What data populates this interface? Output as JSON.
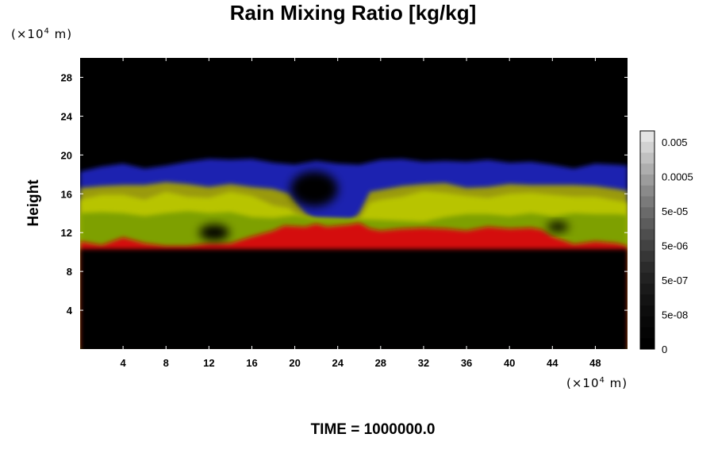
{
  "chart_data": {
    "type": "heatmap",
    "title": "Rain Mixing Ratio [kg/kg]",
    "ylabel": "Height",
    "x_unit": {
      "prefix": "(×10",
      "exp": "4",
      "suffix": " m)"
    },
    "y_unit": {
      "prefix": "(×10",
      "exp": "4",
      "suffix": " m)"
    },
    "xlim": [
      0,
      51
    ],
    "ylim": [
      0,
      30
    ],
    "xticks": [
      4,
      8,
      12,
      16,
      20,
      24,
      28,
      32,
      36,
      40,
      44,
      48
    ],
    "yticks": [
      4,
      8,
      12,
      16,
      20,
      24,
      28
    ],
    "background_color": "#000000",
    "colorbar": {
      "labels": [
        "0.005",
        "0.0005",
        "5e-05",
        "5e-06",
        "5e-07",
        "5e-08",
        "0"
      ],
      "colors": [
        "#e4e4e4",
        "#d2d2d2",
        "#c0c0c0",
        "#aeaeae",
        "#9c9c9c",
        "#8a8a8a",
        "#7a7a7a",
        "#6a6a6a",
        "#5c5c5c",
        "#4e4e4e",
        "#424242",
        "#363636",
        "#2b2b2b",
        "#222222",
        "#1a1a1a",
        "#131313",
        "#0d0d0d",
        "#080808",
        "#040404",
        "#000000"
      ]
    },
    "series": [
      {
        "color": "#1a22b0",
        "points": [
          [
            0,
            18.3
          ],
          [
            2,
            18.8
          ],
          [
            4,
            19.1
          ],
          [
            6,
            18.6
          ],
          [
            8,
            18.9
          ],
          [
            10,
            19.3
          ],
          [
            12,
            19.6
          ],
          [
            14,
            19.5
          ],
          [
            16,
            19.6
          ],
          [
            18,
            19.2
          ],
          [
            20,
            19.0
          ],
          [
            22,
            19.4
          ],
          [
            24,
            19.1
          ],
          [
            26,
            19.0
          ],
          [
            28,
            19.5
          ],
          [
            30,
            19.6
          ],
          [
            32,
            19.3
          ],
          [
            34,
            19.4
          ],
          [
            36,
            19.3
          ],
          [
            38,
            19.5
          ],
          [
            40,
            19.2
          ],
          [
            42,
            19.3
          ],
          [
            44,
            19.0
          ],
          [
            46,
            18.6
          ],
          [
            48,
            19.1
          ],
          [
            50,
            19.0
          ],
          [
            51,
            18.9
          ]
        ]
      },
      {
        "color": "#9a9a10",
        "points": [
          [
            0,
            16.6
          ],
          [
            2,
            16.8
          ],
          [
            4,
            16.9
          ],
          [
            6,
            16.9
          ],
          [
            8,
            17.2
          ],
          [
            10,
            17.0
          ],
          [
            12,
            16.7
          ],
          [
            14,
            17.0
          ],
          [
            16,
            16.7
          ],
          [
            18,
            16.5
          ],
          [
            19.5,
            16.0
          ],
          [
            20.5,
            14.6
          ],
          [
            21,
            14.0
          ],
          [
            22,
            13.2
          ],
          [
            25,
            13.0
          ],
          [
            26,
            14.0
          ],
          [
            27,
            16.2
          ],
          [
            28,
            16.4
          ],
          [
            30,
            16.8
          ],
          [
            32,
            17.0
          ],
          [
            34,
            17.1
          ],
          [
            36,
            16.6
          ],
          [
            38,
            16.7
          ],
          [
            40,
            17.0
          ],
          [
            42,
            16.9
          ],
          [
            44,
            16.9
          ],
          [
            46,
            16.9
          ],
          [
            48,
            16.8
          ],
          [
            50,
            16.5
          ],
          [
            51,
            16.3
          ]
        ]
      },
      {
        "color": "#b8c400",
        "points": [
          [
            0,
            15.4
          ],
          [
            2,
            15.9
          ],
          [
            4,
            15.9
          ],
          [
            6,
            15.4
          ],
          [
            8,
            16.2
          ],
          [
            10,
            15.7
          ],
          [
            12,
            15.6
          ],
          [
            14,
            16.2
          ],
          [
            16,
            15.8
          ],
          [
            18,
            14.8
          ],
          [
            19.5,
            14.5
          ],
          [
            20,
            14.0
          ],
          [
            21,
            13.5
          ],
          [
            26,
            13.3
          ],
          [
            27,
            15.1
          ],
          [
            28,
            15.4
          ],
          [
            30,
            15.7
          ],
          [
            32,
            16.3
          ],
          [
            34,
            16.1
          ],
          [
            36,
            15.8
          ],
          [
            38,
            15.6
          ],
          [
            40,
            16.0
          ],
          [
            42,
            16.1
          ],
          [
            44,
            15.9
          ],
          [
            46,
            15.7
          ],
          [
            48,
            15.7
          ],
          [
            50,
            15.3
          ],
          [
            51,
            15.1
          ]
        ]
      },
      {
        "color": "#7ea000",
        "points": [
          [
            0,
            14.0
          ],
          [
            2,
            14.1
          ],
          [
            4,
            14.0
          ],
          [
            6,
            13.7
          ],
          [
            8,
            14.0
          ],
          [
            10,
            14.2
          ],
          [
            12,
            14.0
          ],
          [
            14,
            14.1
          ],
          [
            16,
            13.6
          ],
          [
            18,
            13.5
          ],
          [
            20,
            13.8
          ],
          [
            22,
            13.5
          ],
          [
            26,
            13.4
          ],
          [
            28,
            13.3
          ],
          [
            30,
            13.2
          ],
          [
            32,
            13.1
          ],
          [
            34,
            13.6
          ],
          [
            36,
            13.9
          ],
          [
            38,
            13.9
          ],
          [
            40,
            13.7
          ],
          [
            42,
            14.0
          ],
          [
            44,
            13.7
          ],
          [
            46,
            14.0
          ],
          [
            48,
            13.9
          ],
          [
            50,
            13.9
          ],
          [
            51,
            13.8
          ]
        ]
      },
      {
        "color": "#d41010",
        "points": [
          [
            0,
            11.1
          ],
          [
            2,
            10.7
          ],
          [
            4,
            11.5
          ],
          [
            6,
            10.9
          ],
          [
            8,
            10.6
          ],
          [
            10,
            10.6
          ],
          [
            12,
            10.9
          ],
          [
            14,
            10.9
          ],
          [
            16,
            11.6
          ],
          [
            18,
            12.2
          ],
          [
            19,
            12.7
          ],
          [
            21,
            12.6
          ],
          [
            22,
            12.9
          ],
          [
            23,
            12.6
          ],
          [
            25,
            12.8
          ],
          [
            26,
            13.0
          ],
          [
            27,
            12.4
          ],
          [
            28,
            12.2
          ],
          [
            30,
            12.4
          ],
          [
            32,
            12.5
          ],
          [
            34,
            12.4
          ],
          [
            36,
            12.2
          ],
          [
            38,
            12.6
          ],
          [
            40,
            12.4
          ],
          [
            42,
            12.5
          ],
          [
            43,
            12.3
          ],
          [
            44,
            11.6
          ],
          [
            46,
            10.8
          ],
          [
            48,
            11.1
          ],
          [
            50,
            10.9
          ],
          [
            51,
            10.6
          ]
        ]
      }
    ],
    "gaps": [
      {
        "x": 12.5,
        "y": 12.0,
        "rx": 1.4,
        "ry": 0.8
      },
      {
        "x": 21.8,
        "y": 16.5,
        "rx": 2.2,
        "ry": 1.8
      },
      {
        "x": 44.5,
        "y": 12.6,
        "rx": 1.0,
        "ry": 0.5
      }
    ]
  },
  "footer": {
    "time": "TIME = 1000000.0"
  }
}
